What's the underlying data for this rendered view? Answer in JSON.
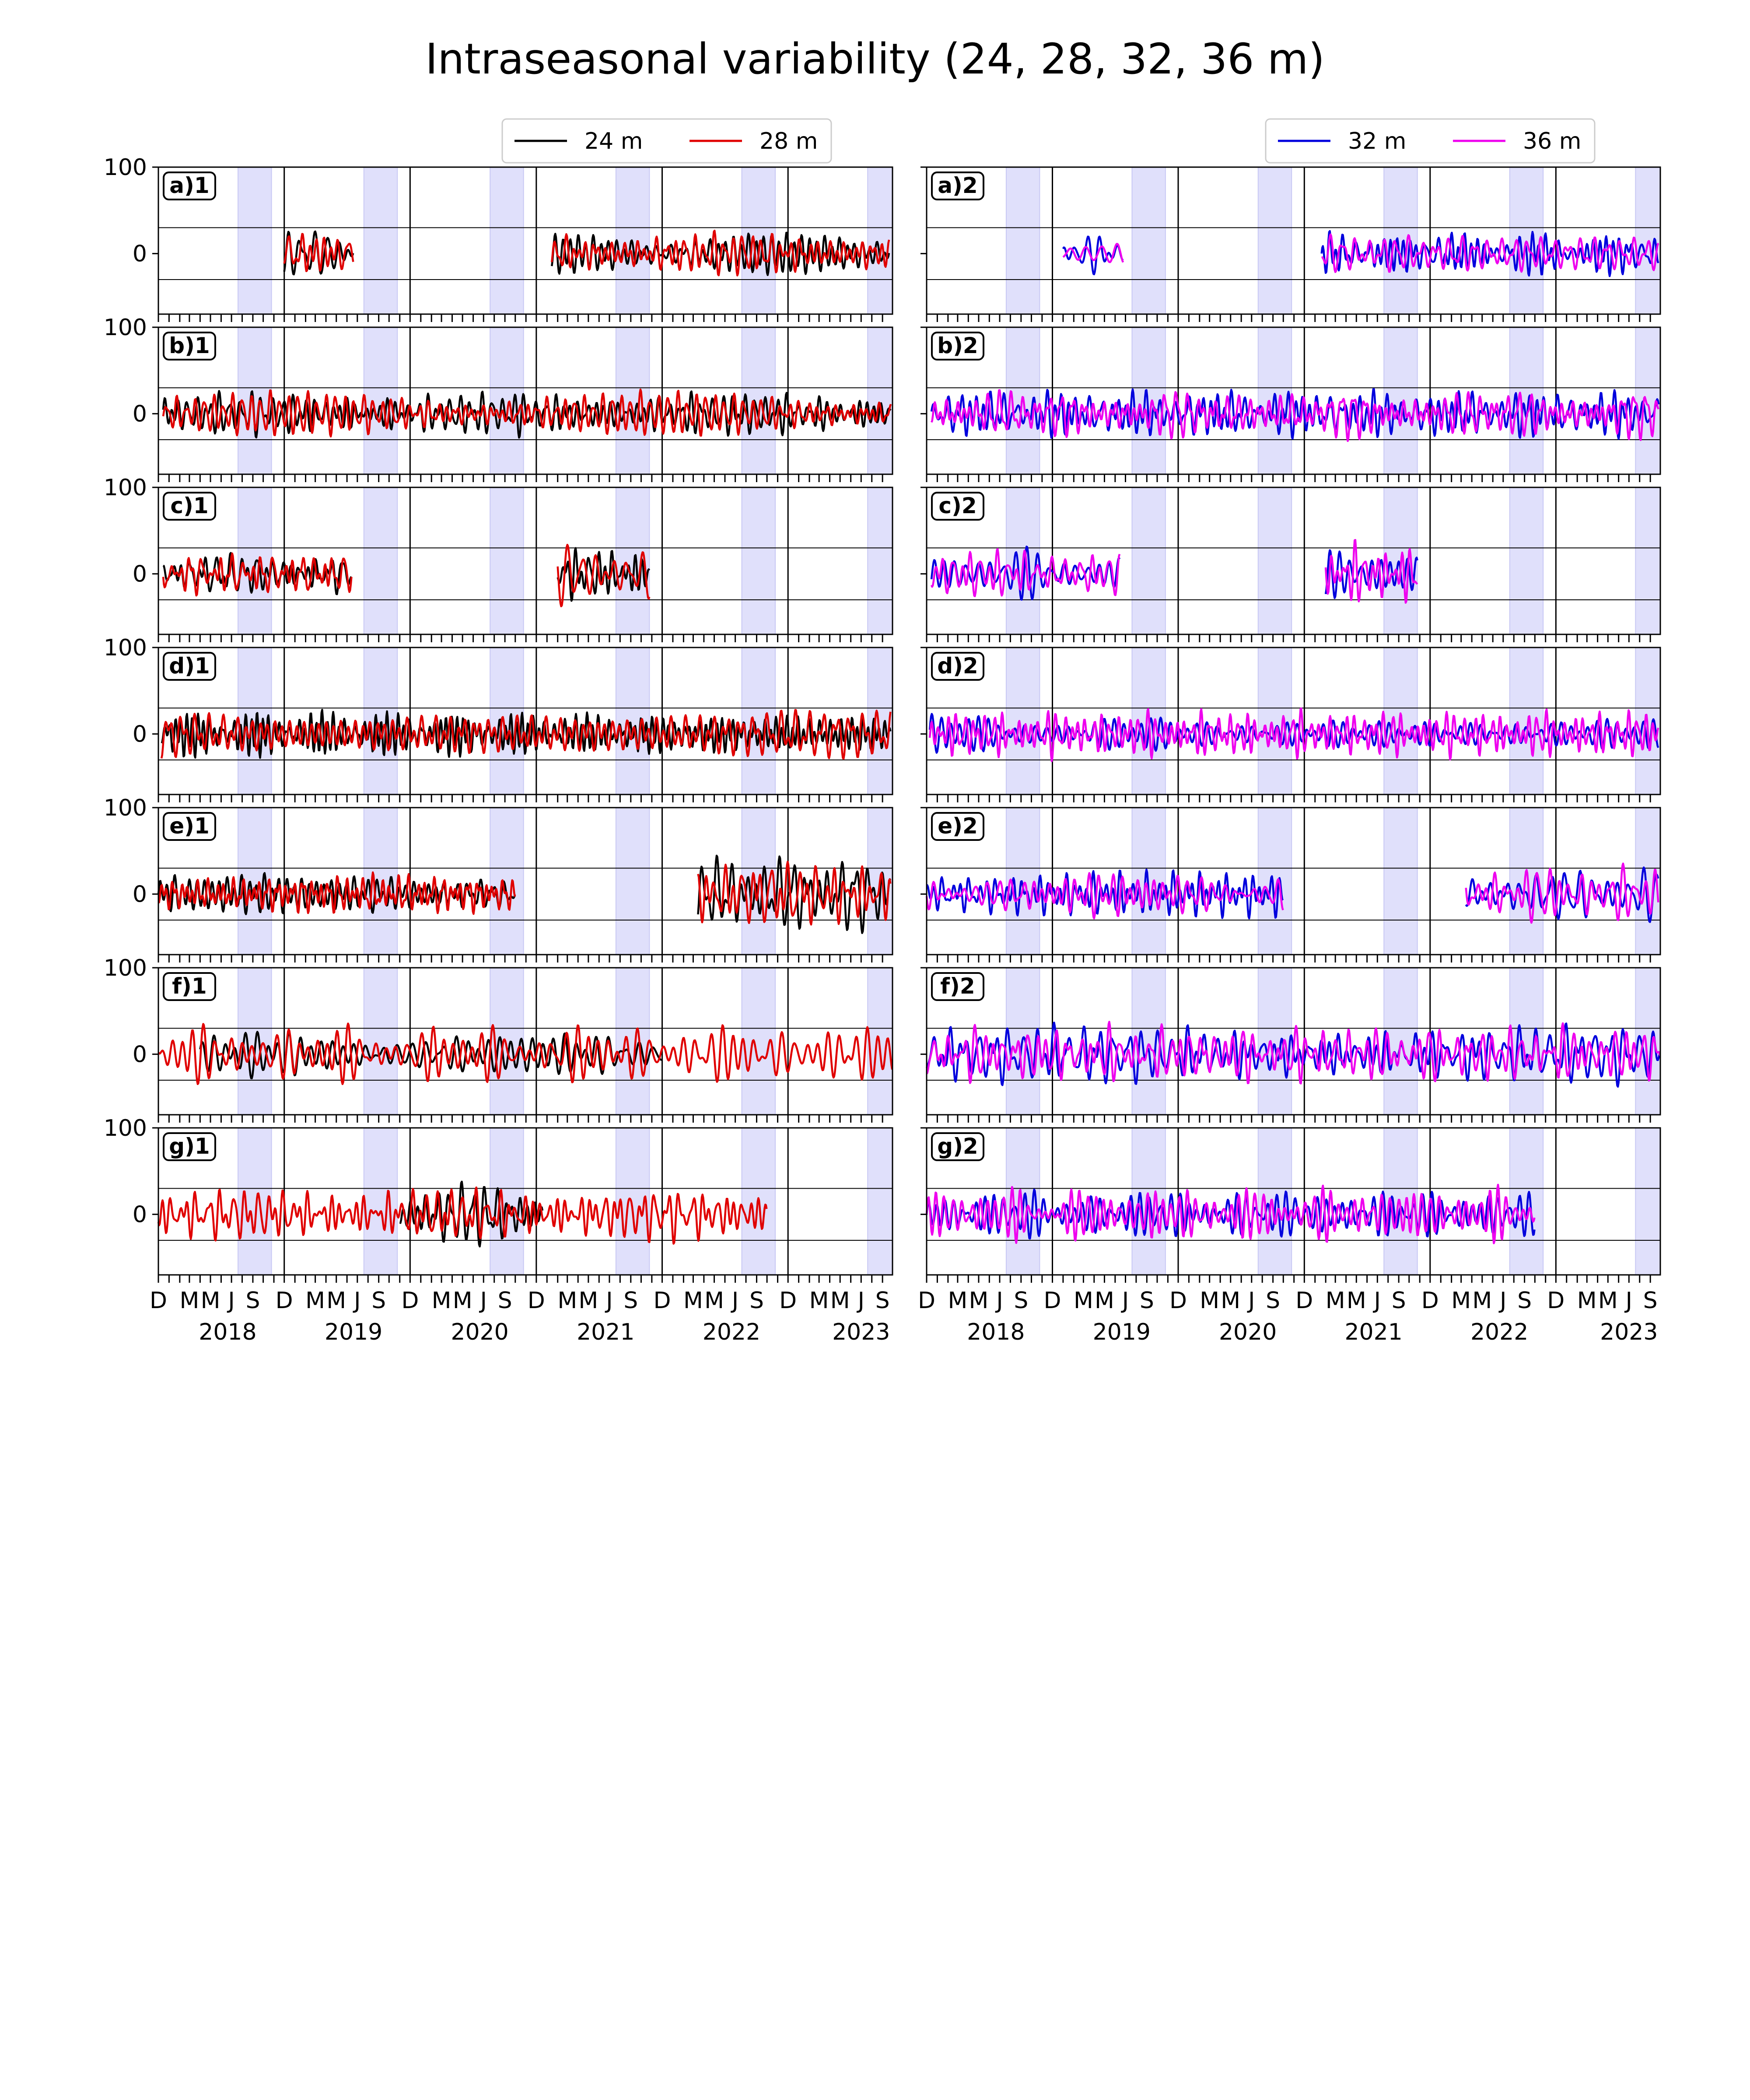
{
  "chart_data": {
    "type": "line",
    "title": "Intraseasonal variability (24, 28, 32, 36 m)",
    "xlabel": "",
    "ylabel": "",
    "ylim": [
      -70,
      100
    ],
    "y_ticks": [
      0,
      100
    ],
    "hlines": [
      -30,
      30
    ],
    "x_range": [
      "2017-12-01",
      "2023-09-30"
    ],
    "x_tick_labels": [
      "D",
      "M",
      "M",
      "J",
      "S",
      "D",
      "M",
      "M",
      "J",
      "S",
      "D",
      "M",
      "M",
      "J",
      "S",
      "D",
      "M",
      "M",
      "J",
      "S",
      "D",
      "M",
      "M",
      "J",
      "S",
      "D",
      "M",
      "M",
      "J",
      "S"
    ],
    "x_tick_dates": [
      "2017-12",
      "2018-03",
      "2018-05",
      "2018-07",
      "2018-09",
      "2018-12",
      "2019-03",
      "2019-05",
      "2019-07",
      "2019-09",
      "2019-12",
      "2020-03",
      "2020-05",
      "2020-07",
      "2020-09",
      "2020-12",
      "2021-03",
      "2021-05",
      "2021-07",
      "2021-09",
      "2021-12",
      "2022-03",
      "2022-05",
      "2022-07",
      "2022-09",
      "2022-12",
      "2023-03",
      "2023-05",
      "2023-07",
      "2023-09"
    ],
    "year_labels": [
      "2018",
      "2019",
      "2020",
      "2021",
      "2022",
      "2023"
    ],
    "year_vlines": [
      "2018-12",
      "2019-12",
      "2020-12",
      "2021-12",
      "2022-12"
    ],
    "shaded_periods": [
      [
        "2018-07-20",
        "2018-10-25"
      ],
      [
        "2019-07-20",
        "2019-10-25"
      ],
      [
        "2020-07-20",
        "2020-10-25"
      ],
      [
        "2021-07-20",
        "2021-10-25"
      ],
      [
        "2022-07-20",
        "2022-10-25"
      ],
      [
        "2023-07-20",
        "2023-09-30"
      ]
    ],
    "grid": false,
    "legends": [
      {
        "column": 1,
        "placement": "top-center",
        "entries": [
          {
            "name": "24 m",
            "color": "#000000"
          },
          {
            "name": "28 m",
            "color": "#e00000"
          }
        ]
      },
      {
        "column": 2,
        "placement": "top-right",
        "entries": [
          {
            "name": "32 m",
            "color": "#0000dd"
          },
          {
            "name": "36 m",
            "color": "#ee00ee"
          }
        ]
      }
    ],
    "panels": [
      {
        "label": "a)1",
        "column": 1,
        "row": 0,
        "series": [
          {
            "name": "24 m",
            "color": "#000000",
            "segments": [
              {
                "start": "2018-12-01",
                "end": "2019-06-20",
                "amp": 22,
                "period": 30,
                "seed": 11
              },
              {
                "start": "2021-01-15",
                "end": "2023-09-20",
                "amp": 18,
                "period": 28,
                "seed": 12
              }
            ]
          },
          {
            "name": "28 m",
            "color": "#e00000",
            "segments": [
              {
                "start": "2018-12-01",
                "end": "2019-06-20",
                "amp": 20,
                "period": 30,
                "seed": 13
              },
              {
                "start": "2021-01-15",
                "end": "2023-09-20",
                "amp": 18,
                "period": 28,
                "seed": 14
              }
            ]
          }
        ]
      },
      {
        "label": "a)2",
        "column": 2,
        "row": 0,
        "series": [
          {
            "name": "32 m",
            "color": "#0000dd",
            "segments": [
              {
                "start": "2019-01-01",
                "end": "2019-06-25",
                "amp": 16,
                "period": 30,
                "seed": 21
              },
              {
                "start": "2021-01-20",
                "end": "2023-09-25",
                "amp": 18,
                "period": 28,
                "seed": 22
              }
            ]
          },
          {
            "name": "36 m",
            "color": "#ee00ee",
            "segments": [
              {
                "start": "2019-01-01",
                "end": "2019-06-25",
                "amp": 16,
                "period": 30,
                "seed": 23
              },
              {
                "start": "2021-01-20",
                "end": "2023-09-25",
                "amp": 18,
                "period": 28,
                "seed": 24
              }
            ]
          }
        ]
      },
      {
        "label": "b)1",
        "column": 1,
        "row": 1,
        "series": [
          {
            "name": "24 m",
            "color": "#000000",
            "segments": [
              {
                "start": "2017-12-15",
                "end": "2023-09-25",
                "amp": 18,
                "period": 26,
                "seed": 31
              }
            ]
          },
          {
            "name": "28 m",
            "color": "#e00000",
            "segments": [
              {
                "start": "2017-12-15",
                "end": "2023-09-25",
                "amp": 18,
                "period": 26,
                "seed": 32
              }
            ]
          }
        ]
      },
      {
        "label": "b)2",
        "column": 2,
        "row": 1,
        "series": [
          {
            "name": "32 m",
            "color": "#0000dd",
            "segments": [
              {
                "start": "2017-12-15",
                "end": "2023-09-25",
                "amp": 20,
                "period": 26,
                "seed": 41
              }
            ]
          },
          {
            "name": "36 m",
            "color": "#ee00ee",
            "segments": [
              {
                "start": "2017-12-15",
                "end": "2023-09-25",
                "amp": 20,
                "period": 26,
                "seed": 42
              }
            ]
          }
        ]
      },
      {
        "label": "c)1",
        "column": 1,
        "row": 2,
        "series": [
          {
            "name": "24 m",
            "color": "#000000",
            "segments": [
              {
                "start": "2017-12-15",
                "end": "2019-06-15",
                "amp": 18,
                "period": 26,
                "seed": 51
              },
              {
                "start": "2021-02-01",
                "end": "2021-10-25",
                "amp": 22,
                "period": 28,
                "seed": 52
              }
            ]
          },
          {
            "name": "28 m",
            "color": "#e00000",
            "segments": [
              {
                "start": "2017-12-15",
                "end": "2019-06-15",
                "amp": 18,
                "period": 26,
                "seed": 53
              },
              {
                "start": "2021-02-01",
                "end": "2021-10-25",
                "amp": 24,
                "period": 28,
                "seed": 54
              }
            ]
          }
        ]
      },
      {
        "label": "c)2",
        "column": 2,
        "row": 2,
        "series": [
          {
            "name": "32 m",
            "color": "#0000dd",
            "segments": [
              {
                "start": "2017-12-15",
                "end": "2019-06-15",
                "amp": 20,
                "period": 26,
                "seed": 61
              },
              {
                "start": "2021-02-01",
                "end": "2021-10-25",
                "amp": 22,
                "period": 28,
                "seed": 62
              }
            ]
          },
          {
            "name": "36 m",
            "color": "#ee00ee",
            "segments": [
              {
                "start": "2017-12-15",
                "end": "2019-06-15",
                "amp": 20,
                "period": 26,
                "seed": 63
              },
              {
                "start": "2021-02-01",
                "end": "2021-10-25",
                "amp": 26,
                "period": 28,
                "seed": 64
              }
            ]
          }
        ]
      },
      {
        "label": "d)1",
        "column": 1,
        "row": 3,
        "series": [
          {
            "name": "24 m",
            "color": "#000000",
            "segments": [
              {
                "start": "2017-12-10",
                "end": "2023-09-25",
                "amp": 18,
                "period": 26,
                "seed": 71
              }
            ]
          },
          {
            "name": "28 m",
            "color": "#e00000",
            "segments": [
              {
                "start": "2017-12-10",
                "end": "2023-09-25",
                "amp": 20,
                "period": 26,
                "seed": 72
              }
            ]
          }
        ]
      },
      {
        "label": "d)2",
        "column": 2,
        "row": 3,
        "series": [
          {
            "name": "32 m",
            "color": "#0000dd",
            "segments": [
              {
                "start": "2017-12-10",
                "end": "2023-09-25",
                "amp": 18,
                "period": 26,
                "seed": 81
              }
            ]
          },
          {
            "name": "36 m",
            "color": "#ee00ee",
            "segments": [
              {
                "start": "2017-12-10",
                "end": "2023-09-25",
                "amp": 20,
                "period": 26,
                "seed": 82
              }
            ]
          }
        ]
      },
      {
        "label": "e)1",
        "column": 1,
        "row": 4,
        "series": [
          {
            "name": "24 m",
            "color": "#000000",
            "segments": [
              {
                "start": "2017-12-01",
                "end": "2020-09-30",
                "amp": 16,
                "period": 24,
                "seed": 91
              },
              {
                "start": "2022-03-15",
                "end": "2023-09-25",
                "amp": 30,
                "period": 30,
                "seed": 92
              }
            ]
          },
          {
            "name": "28 m",
            "color": "#e00000",
            "segments": [
              {
                "start": "2017-12-01",
                "end": "2020-09-30",
                "amp": 16,
                "period": 24,
                "seed": 93
              },
              {
                "start": "2022-03-15",
                "end": "2023-09-25",
                "amp": 28,
                "period": 30,
                "seed": 94
              }
            ]
          }
        ]
      },
      {
        "label": "e)2",
        "column": 2,
        "row": 4,
        "series": [
          {
            "name": "32 m",
            "color": "#0000dd",
            "segments": [
              {
                "start": "2017-12-01",
                "end": "2020-09-30",
                "amp": 18,
                "period": 26,
                "seed": 101
              },
              {
                "start": "2022-03-15",
                "end": "2023-09-25",
                "amp": 24,
                "period": 28,
                "seed": 102
              }
            ]
          },
          {
            "name": "36 m",
            "color": "#ee00ee",
            "segments": [
              {
                "start": "2017-12-01",
                "end": "2020-09-30",
                "amp": 18,
                "period": 26,
                "seed": 103
              },
              {
                "start": "2022-03-15",
                "end": "2023-09-25",
                "amp": 24,
                "period": 28,
                "seed": 104
              }
            ]
          }
        ]
      },
      {
        "label": "f)1",
        "column": 1,
        "row": 5,
        "series": [
          {
            "name": "24 m",
            "color": "#000000",
            "segments": [
              {
                "start": "2018-04-01",
                "end": "2021-12-01",
                "amp": 18,
                "period": 28,
                "seed": 111
              }
            ]
          },
          {
            "name": "28 m",
            "color": "#e00000",
            "segments": [
              {
                "start": "2017-12-01",
                "end": "2023-09-30",
                "amp": 24,
                "period": 30,
                "seed": 112
              }
            ]
          }
        ]
      },
      {
        "label": "f)2",
        "column": 2,
        "row": 5,
        "series": [
          {
            "name": "32 m",
            "color": "#0000dd",
            "segments": [
              {
                "start": "2017-12-01",
                "end": "2023-09-30",
                "amp": 24,
                "period": 30,
                "seed": 121
              }
            ]
          },
          {
            "name": "36 m",
            "color": "#ee00ee",
            "segments": [
              {
                "start": "2017-12-01",
                "end": "2023-09-30",
                "amp": 24,
                "period": 30,
                "seed": 122
              }
            ]
          }
        ]
      },
      {
        "label": "g)1",
        "column": 1,
        "row": 6,
        "series": [
          {
            "name": "24 m",
            "color": "#000000",
            "segments": [
              {
                "start": "2019-11-01",
                "end": "2020-12-20",
                "amp": 26,
                "period": 26,
                "seed": 131
              }
            ]
          },
          {
            "name": "28 m",
            "color": "#e00000",
            "segments": [
              {
                "start": "2017-12-01",
                "end": "2022-09-30",
                "amp": 22,
                "period": 28,
                "seed": 132
              }
            ]
          }
        ]
      },
      {
        "label": "g)2",
        "column": 2,
        "row": 6,
        "series": [
          {
            "name": "32 m",
            "color": "#0000dd",
            "segments": [
              {
                "start": "2017-12-01",
                "end": "2022-09-30",
                "amp": 20,
                "period": 28,
                "seed": 141
              }
            ]
          },
          {
            "name": "36 m",
            "color": "#ee00ee",
            "segments": [
              {
                "start": "2017-12-01",
                "end": "2022-09-30",
                "amp": 22,
                "period": 28,
                "seed": 142
              }
            ]
          }
        ]
      }
    ]
  }
}
